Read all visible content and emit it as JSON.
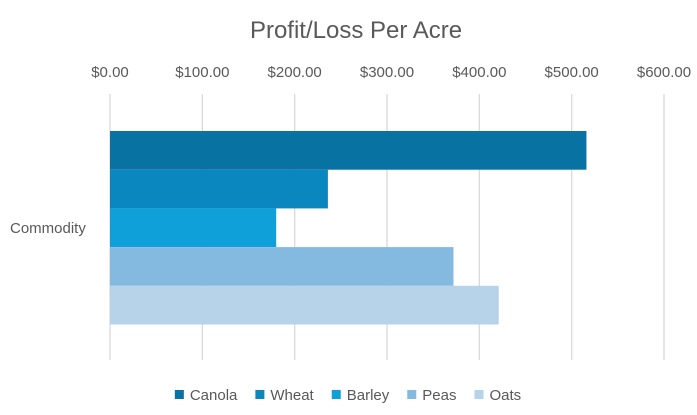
{
  "chart_data": {
    "type": "bar",
    "orientation": "horizontal",
    "title": "Profit/Loss Per Acre",
    "categories": [
      "Commodity"
    ],
    "series": [
      {
        "name": "Canola",
        "values": [
          516
        ],
        "color": "#0872a3"
      },
      {
        "name": "Wheat",
        "values": [
          236
        ],
        "color": "#0a87be"
      },
      {
        "name": "Barley",
        "values": [
          180
        ],
        "color": "#10a0d9"
      },
      {
        "name": "Peas",
        "values": [
          372
        ],
        "color": "#84b9e0"
      },
      {
        "name": "Oats",
        "values": [
          421
        ],
        "color": "#b6d3ea"
      }
    ],
    "xlim": [
      0,
      600
    ],
    "x_tick_labels": [
      "$0.00",
      "$100.00",
      "$200.00",
      "$300.00",
      "$400.00",
      "$500.00",
      "$600.00"
    ],
    "x_axis_position": "top",
    "xlabel": "",
    "ylabel": "",
    "grid": true,
    "legend": "bottom"
  }
}
